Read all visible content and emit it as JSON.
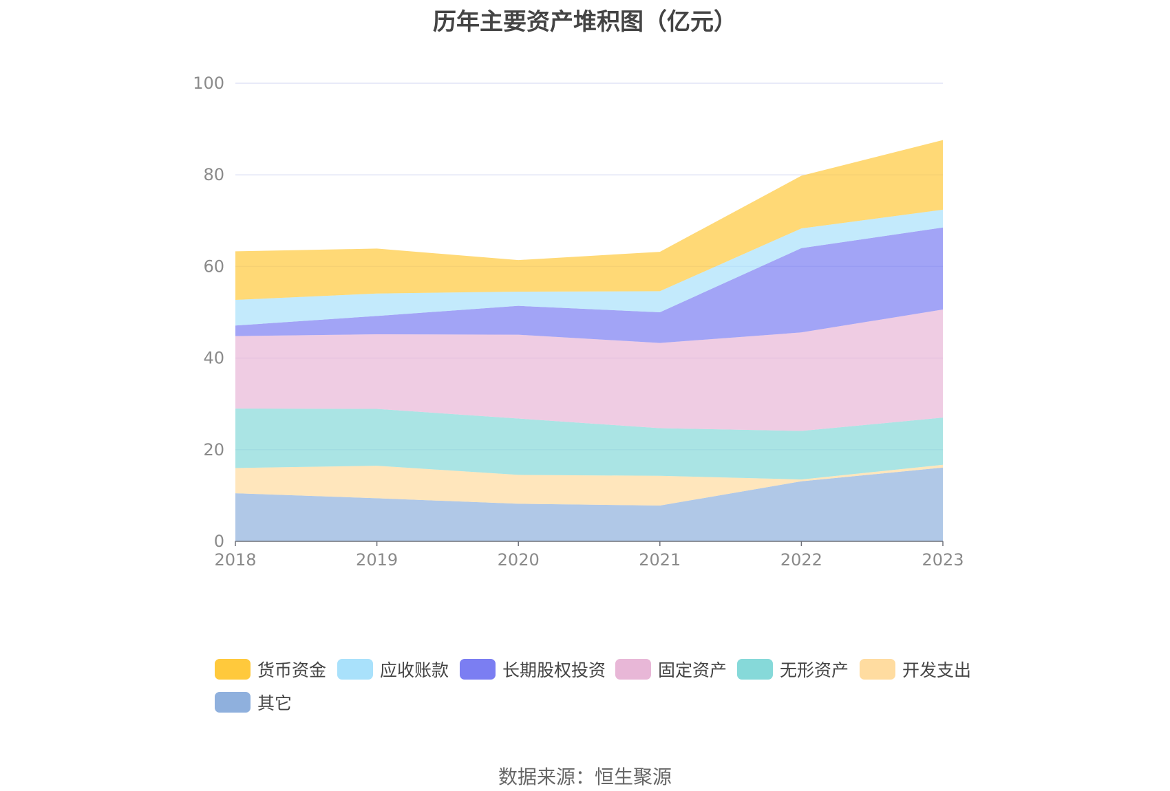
{
  "chart_data": {
    "type": "area",
    "stacked": true,
    "title": "历年主要资产堆积图（亿元）",
    "categories": [
      "2018",
      "2019",
      "2020",
      "2021",
      "2022",
      "2023"
    ],
    "ylim": [
      0,
      100
    ],
    "yticks": [
      "0",
      "20",
      "40",
      "60",
      "80",
      "100"
    ],
    "grid": true,
    "legend_position": "bottom",
    "series": [
      {
        "name": "其它",
        "color": "#8fb0dd",
        "values": [
          10.5,
          9.4,
          8.2,
          7.8,
          13.1,
          16.1
        ]
      },
      {
        "name": "开发支出",
        "color": "#ffdca0",
        "values": [
          5.5,
          7.1,
          6.3,
          6.5,
          0.4,
          0.6
        ]
      },
      {
        "name": "无形资产",
        "color": "#86d9d9",
        "values": [
          13.0,
          12.4,
          12.3,
          10.4,
          10.6,
          10.3
        ]
      },
      {
        "name": "固定资产",
        "color": "#e8b7d7",
        "values": [
          15.8,
          16.3,
          18.3,
          18.6,
          21.5,
          23.6
        ]
      },
      {
        "name": "长期股权投资",
        "color": "#7b7ef2",
        "values": [
          2.3,
          4.0,
          6.3,
          6.7,
          18.4,
          17.9
        ]
      },
      {
        "name": "应收账款",
        "color": "#a9e1fb",
        "values": [
          5.6,
          4.9,
          3.1,
          4.6,
          4.3,
          3.9
        ]
      },
      {
        "name": "货币资金",
        "color": "#ffc93c",
        "values": [
          10.6,
          9.8,
          6.9,
          8.6,
          11.5,
          15.2
        ]
      }
    ],
    "legend_order": [
      "货币资金",
      "应收账款",
      "长期股权投资",
      "固定资产",
      "无形资产",
      "开发支出",
      "其它"
    ]
  },
  "source": "数据来源：恒生聚源"
}
